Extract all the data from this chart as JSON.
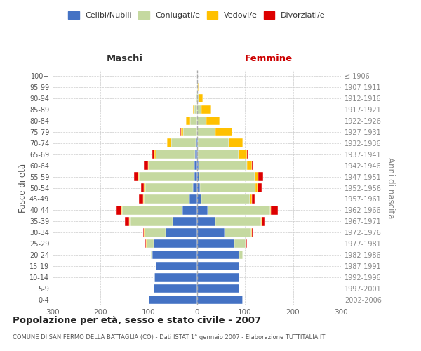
{
  "age_groups": [
    "0-4",
    "5-9",
    "10-14",
    "15-19",
    "20-24",
    "25-29",
    "30-34",
    "35-39",
    "40-44",
    "45-49",
    "50-54",
    "55-59",
    "60-64",
    "65-69",
    "70-74",
    "75-79",
    "80-84",
    "85-89",
    "90-94",
    "95-99",
    "100+"
  ],
  "birth_years": [
    "2002-2006",
    "1997-2001",
    "1992-1996",
    "1987-1991",
    "1982-1986",
    "1977-1981",
    "1972-1976",
    "1967-1971",
    "1962-1966",
    "1957-1961",
    "1952-1956",
    "1947-1951",
    "1942-1946",
    "1937-1941",
    "1932-1936",
    "1927-1931",
    "1922-1926",
    "1917-1921",
    "1912-1916",
    "1907-1911",
    "≤ 1906"
  ],
  "males_celibi": [
    100,
    90,
    88,
    85,
    92,
    90,
    65,
    50,
    30,
    15,
    8,
    5,
    5,
    3,
    2,
    0,
    0,
    0,
    0,
    0,
    0
  ],
  "males_coniugati": [
    0,
    0,
    0,
    0,
    4,
    14,
    44,
    90,
    125,
    95,
    100,
    115,
    95,
    82,
    52,
    28,
    14,
    5,
    2,
    0,
    0
  ],
  "males_vedovi": [
    0,
    0,
    0,
    0,
    0,
    2,
    1,
    1,
    2,
    2,
    2,
    2,
    2,
    4,
    8,
    5,
    8,
    3,
    0,
    0,
    0
  ],
  "males_divorziati": [
    0,
    0,
    0,
    0,
    0,
    2,
    2,
    8,
    10,
    8,
    6,
    8,
    8,
    4,
    0,
    2,
    0,
    0,
    0,
    0,
    0
  ],
  "females_nubili": [
    96,
    88,
    88,
    88,
    88,
    78,
    58,
    38,
    22,
    10,
    7,
    5,
    4,
    2,
    2,
    0,
    0,
    0,
    0,
    0,
    0
  ],
  "females_coniugate": [
    0,
    0,
    0,
    0,
    7,
    24,
    55,
    95,
    130,
    100,
    115,
    115,
    100,
    85,
    65,
    38,
    20,
    10,
    4,
    2,
    0
  ],
  "females_vedove": [
    0,
    0,
    0,
    0,
    0,
    1,
    1,
    2,
    2,
    4,
    5,
    8,
    10,
    18,
    28,
    35,
    28,
    20,
    8,
    2,
    0
  ],
  "females_divorziate": [
    0,
    0,
    0,
    0,
    0,
    2,
    4,
    6,
    15,
    6,
    8,
    10,
    4,
    2,
    0,
    0,
    0,
    0,
    0,
    0,
    0
  ],
  "colors_celibi": "#4472c4",
  "colors_coniugati": "#c5d9a0",
  "colors_vedovi": "#ffc000",
  "colors_divorziati": "#dd0000",
  "xlim": 300,
  "title": "Popolazione per età, sesso e stato civile - 2007",
  "subtitle": "COMUNE DI SAN FERMO DELLA BATTAGLIA (CO) - Dati ISTAT 1° gennaio 2007 - Elaborazione TUTTITALIA.IT",
  "ylabel_left": "Fasce di età",
  "ylabel_right": "Anni di nascita",
  "xlabel_maschi": "Maschi",
  "xlabel_femmine": "Femmine",
  "bg_color": "#ffffff",
  "grid_color": "#cccccc"
}
